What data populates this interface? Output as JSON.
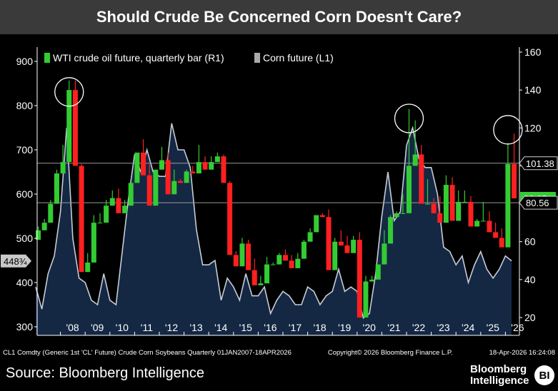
{
  "title": "Should Crude Be Concerned Corn Doesn't Care?",
  "footnote": {
    "left": "CL1 Comdty (Generic 1st 'CL' Future) Crude Corn Soybeans Quarterly 01JAN2007-18APR2026",
    "center": "Copyright© 2026 Bloomberg Finance L.P.",
    "right": "18-Apr-2026 16:24:08"
  },
  "source": "Source: Bloomberg Intelligence",
  "logo": {
    "line1": "Bloomberg",
    "line2": "Intelligence",
    "badge": "BI"
  },
  "colors": {
    "up": "#33cc33",
    "down": "#ff2020",
    "corn_line": "#c8ccd4",
    "corn_fill": "#142844",
    "ref_line": "#9a9a9a"
  },
  "chart_data": {
    "type": "line",
    "legend": [
      {
        "name": "WTI crude oil future, quarterly bar (R1)",
        "color": "#33cc33"
      },
      {
        "name": "Corn future (L1)",
        "color": "#aaaaaa"
      }
    ],
    "legend_position": "top-left",
    "x_ticks": [
      "'08",
      "'09",
      "'10",
      "'11",
      "'12",
      "'13",
      "'14",
      "'15",
      "'16",
      "'17",
      "'18",
      "'19",
      "'20",
      "'21",
      "'22",
      "'23",
      "'24",
      "'25",
      "'26"
    ],
    "left_axis": {
      "ticks": [
        "900",
        "800",
        "700",
        "600",
        "500",
        "400",
        "300"
      ],
      "ylim": [
        280,
        930
      ]
    },
    "right_axis": {
      "ticks": [
        "160",
        "140",
        "120",
        "100",
        "80",
        "60",
        "40",
        "20"
      ],
      "ylim": [
        16,
        163
      ]
    },
    "reference_lines": [
      {
        "value": 101.38,
        "label": "101.38",
        "axis": "right"
      },
      {
        "value": 80.56,
        "label": "80.56",
        "axis": "right"
      }
    ],
    "last_value_labels": [
      {
        "label": "448¾",
        "value": 448.75,
        "axis": "left"
      },
      {
        "label": "82.85",
        "value": 82.85,
        "axis": "right"
      }
    ],
    "corn_series": {
      "name": "Corn future (L1)",
      "x": [
        2007.0,
        2007.25,
        2007.5,
        2007.75,
        2008.0,
        2008.25,
        2008.5,
        2008.75,
        2009.0,
        2009.25,
        2009.5,
        2009.75,
        2010.0,
        2010.25,
        2010.5,
        2010.75,
        2011.0,
        2011.25,
        2011.5,
        2011.75,
        2012.0,
        2012.25,
        2012.5,
        2012.75,
        2013.0,
        2013.25,
        2013.5,
        2013.75,
        2014.0,
        2014.25,
        2014.5,
        2014.75,
        2015.0,
        2015.25,
        2015.5,
        2015.75,
        2016.0,
        2016.25,
        2016.5,
        2016.75,
        2017.0,
        2017.25,
        2017.5,
        2017.75,
        2018.0,
        2018.25,
        2018.5,
        2018.75,
        2019.0,
        2019.25,
        2019.5,
        2019.75,
        2020.0,
        2020.25,
        2020.5,
        2020.75,
        2021.0,
        2021.25,
        2021.5,
        2021.75,
        2022.0,
        2022.25,
        2022.5,
        2022.75,
        2023.0,
        2023.25,
        2023.5,
        2023.75,
        2024.0,
        2024.25,
        2024.5,
        2024.75,
        2025.0,
        2025.25,
        2025.5,
        2025.75,
        2026.0,
        2026.25
      ],
      "values": [
        390,
        340,
        420,
        460,
        560,
        750,
        500,
        410,
        400,
        360,
        350,
        420,
        360,
        350,
        470,
        590,
        690,
        650,
        700,
        650,
        640,
        640,
        760,
        700,
        700,
        660,
        520,
        440,
        440,
        450,
        360,
        410,
        390,
        360,
        420,
        370,
        370,
        390,
        330,
        360,
        380,
        370,
        350,
        350,
        390,
        380,
        350,
        370,
        380,
        430,
        380,
        390,
        380,
        320,
        330,
        420,
        550,
        650,
        540,
        560,
        710,
        750,
        680,
        660,
        660,
        600,
        480,
        470,
        440,
        460,
        400,
        440,
        470,
        430,
        410,
        430,
        460,
        449
      ]
    },
    "crude_series": {
      "name": "WTI crude oil future, quarterly bar (R1)",
      "x": [
        2007.0,
        2007.25,
        2007.5,
        2007.75,
        2008.0,
        2008.25,
        2008.5,
        2008.75,
        2009.0,
        2009.25,
        2009.5,
        2009.75,
        2010.0,
        2010.25,
        2010.5,
        2010.75,
        2011.0,
        2011.25,
        2011.5,
        2011.75,
        2012.0,
        2012.25,
        2012.5,
        2012.75,
        2013.0,
        2013.25,
        2013.5,
        2013.75,
        2014.0,
        2014.25,
        2014.5,
        2014.75,
        2015.0,
        2015.25,
        2015.5,
        2015.75,
        2016.0,
        2016.25,
        2016.5,
        2016.75,
        2017.0,
        2017.25,
        2017.5,
        2017.75,
        2018.0,
        2018.25,
        2018.5,
        2018.75,
        2019.0,
        2019.25,
        2019.5,
        2019.75,
        2020.0,
        2020.25,
        2020.5,
        2020.75,
        2021.0,
        2021.25,
        2021.5,
        2021.75,
        2022.0,
        2022.25,
        2022.5,
        2022.75,
        2023.0,
        2023.25,
        2023.5,
        2023.75,
        2024.0,
        2024.25,
        2024.5,
        2024.75,
        2025.0,
        2025.25,
        2025.5,
        2025.75,
        2026.0,
        2026.25
      ],
      "open": [
        61,
        66,
        70,
        80,
        96,
        102,
        140,
        100,
        44,
        49,
        70,
        70,
        79,
        83,
        75,
        79,
        91,
        107,
        95,
        79,
        98,
        103,
        85,
        92,
        91,
        97,
        96,
        102,
        98,
        102,
        105,
        91,
        53,
        47,
        59,
        45,
        37,
        38,
        48,
        48,
        53,
        50,
        46,
        51,
        60,
        65,
        74,
        73,
        45,
        60,
        58,
        54,
        61,
        20,
        39,
        40,
        48,
        59,
        73,
        75,
        75,
        100,
        106,
        80,
        80,
        75,
        70,
        90,
        71,
        81,
        81,
        68,
        71,
        71,
        65,
        62,
        57,
        101
      ],
      "high": [
        68,
        72,
        82,
        98,
        111,
        145,
        145,
        101,
        54,
        74,
        75,
        82,
        87,
        88,
        82,
        89,
        107,
        114,
        101,
        93,
        110,
        107,
        98,
        93,
        98,
        100,
        111,
        105,
        105,
        107,
        106,
        92,
        55,
        62,
        61,
        51,
        42,
        52,
        49,
        54,
        56,
        53,
        54,
        61,
        67,
        74,
        75,
        77,
        62,
        66,
        63,
        63,
        65,
        42,
        42,
        47,
        66,
        74,
        76,
        85,
        130,
        124,
        111,
        93,
        83,
        84,
        95,
        94,
        87,
        87,
        84,
        72,
        81,
        76,
        70,
        67,
        112,
        117
      ]
    }
  }
}
